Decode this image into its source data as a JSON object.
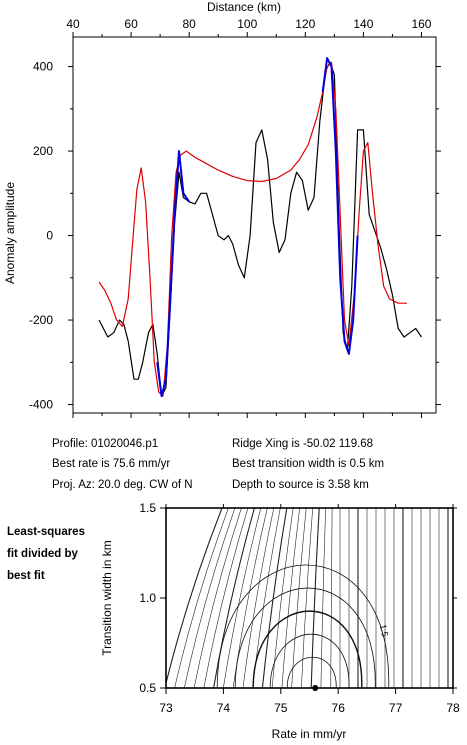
{
  "chart_data": [
    {
      "type": "line",
      "x_label": "Distance (km)",
      "y_label": "Anomaly amplitude",
      "xlim": [
        40,
        165
      ],
      "ylim": [
        -420,
        470
      ],
      "x_ticks": [
        "40",
        "60",
        "80",
        "100",
        "120",
        "140",
        "160"
      ],
      "x_tick_values": [
        40,
        60,
        80,
        100,
        120,
        140,
        160
      ],
      "y_ticks": [
        "400",
        "200",
        "0",
        "-200",
        "-400"
      ],
      "y_tick_values": [
        400,
        200,
        0,
        -200,
        -400
      ],
      "series": [
        {
          "color": "#000000",
          "x": [
            49,
            52,
            54,
            56,
            57.5,
            59,
            61,
            62.5,
            64,
            66,
            67.5,
            69,
            70.5,
            72,
            73.5,
            75,
            76.5,
            78,
            80,
            82,
            84,
            86,
            88,
            90,
            92,
            93.5,
            95,
            97,
            99,
            101,
            103,
            105,
            107,
            109,
            111,
            113,
            115,
            117,
            119,
            121,
            123,
            125,
            127,
            128.5,
            130,
            131.5,
            133,
            134.5,
            136,
            138,
            140,
            142,
            144,
            146,
            148,
            150,
            152,
            154,
            156,
            158,
            160
          ],
          "y": [
            -200,
            -240,
            -230,
            -200,
            -210,
            -250,
            -340,
            -340,
            -300,
            -230,
            -210,
            -280,
            -380,
            -360,
            -170,
            30,
            150,
            90,
            80,
            75,
            100,
            100,
            50,
            0,
            -10,
            0,
            -20,
            -70,
            -100,
            0,
            220,
            250,
            180,
            30,
            -40,
            -10,
            100,
            150,
            130,
            60,
            90,
            270,
            390,
            410,
            380,
            50,
            -230,
            -270,
            -120,
            250,
            250,
            50,
            10,
            -30,
            -80,
            -140,
            -220,
            -240,
            -230,
            -220,
            -240
          ]
        },
        {
          "color": "#e00000",
          "x": [
            49,
            51,
            53,
            55,
            57,
            59,
            60.5,
            62,
            63.5,
            65,
            66.5,
            68,
            69.5,
            71,
            72.5,
            74,
            75.5,
            77,
            79,
            82,
            86,
            90,
            95,
            100,
            105,
            110,
            115,
            118,
            121,
            124,
            126,
            127.5,
            129,
            130.5,
            132,
            133.5,
            135,
            137,
            138.5,
            140,
            141.5,
            143,
            145,
            147,
            149,
            152,
            155
          ],
          "y": [
            -110,
            -130,
            -160,
            -200,
            -215,
            -150,
            -20,
            110,
            160,
            80,
            -100,
            -300,
            -370,
            -380,
            -260,
            0,
            150,
            190,
            200,
            185,
            170,
            155,
            140,
            130,
            128,
            135,
            155,
            180,
            215,
            280,
            340,
            400,
            410,
            300,
            50,
            -200,
            -260,
            -130,
            50,
            200,
            220,
            110,
            -20,
            -120,
            -150,
            -160,
            -160
          ]
        },
        {
          "color": "#0000e0",
          "x": [
            69,
            70.5,
            72,
            73.5,
            75,
            76.5,
            78,
            80
          ],
          "y": [
            -300,
            -380,
            -340,
            -150,
            50,
            200,
            100,
            80
          ]
        },
        {
          "color": "#0000e0",
          "x": [
            126,
            127.5,
            129,
            130.5,
            132,
            133.5,
            135,
            136.5,
            138
          ],
          "y": [
            340,
            420,
            400,
            200,
            -100,
            -250,
            -280,
            -200,
            0
          ]
        }
      ]
    },
    {
      "type": "contour",
      "x_label": "Rate in mm/yr",
      "y_label": "Transition width in km",
      "xlim": [
        73,
        78
      ],
      "ylim": [
        0.5,
        1.5
      ],
      "x_ticks": [
        "73",
        "74",
        "75",
        "76",
        "77",
        "78"
      ],
      "x_tick_values": [
        73,
        74,
        75,
        76,
        77,
        78
      ],
      "y_ticks": [
        "0.5",
        "1.0",
        "1.5"
      ],
      "y_tick_values": [
        0.5,
        1.0,
        1.5
      ],
      "contour_label": "1.5",
      "best_fit": {
        "rate": 75.6,
        "width": 0.5
      }
    }
  ],
  "info": {
    "profile": "Profile: 01020046.p1",
    "best_rate": "Best rate is 75.6 mm/yr",
    "proj_az": "Proj. Az: 20.0 deg. CW of N",
    "ridge_xing": "Ridge Xing is -50.02 119.68",
    "best_width": "Best transition width is 0.5 km",
    "depth": "Depth to source is   3.58 km"
  },
  "side_note": [
    "Least-squares",
    "fit divided by",
    "best fit"
  ]
}
